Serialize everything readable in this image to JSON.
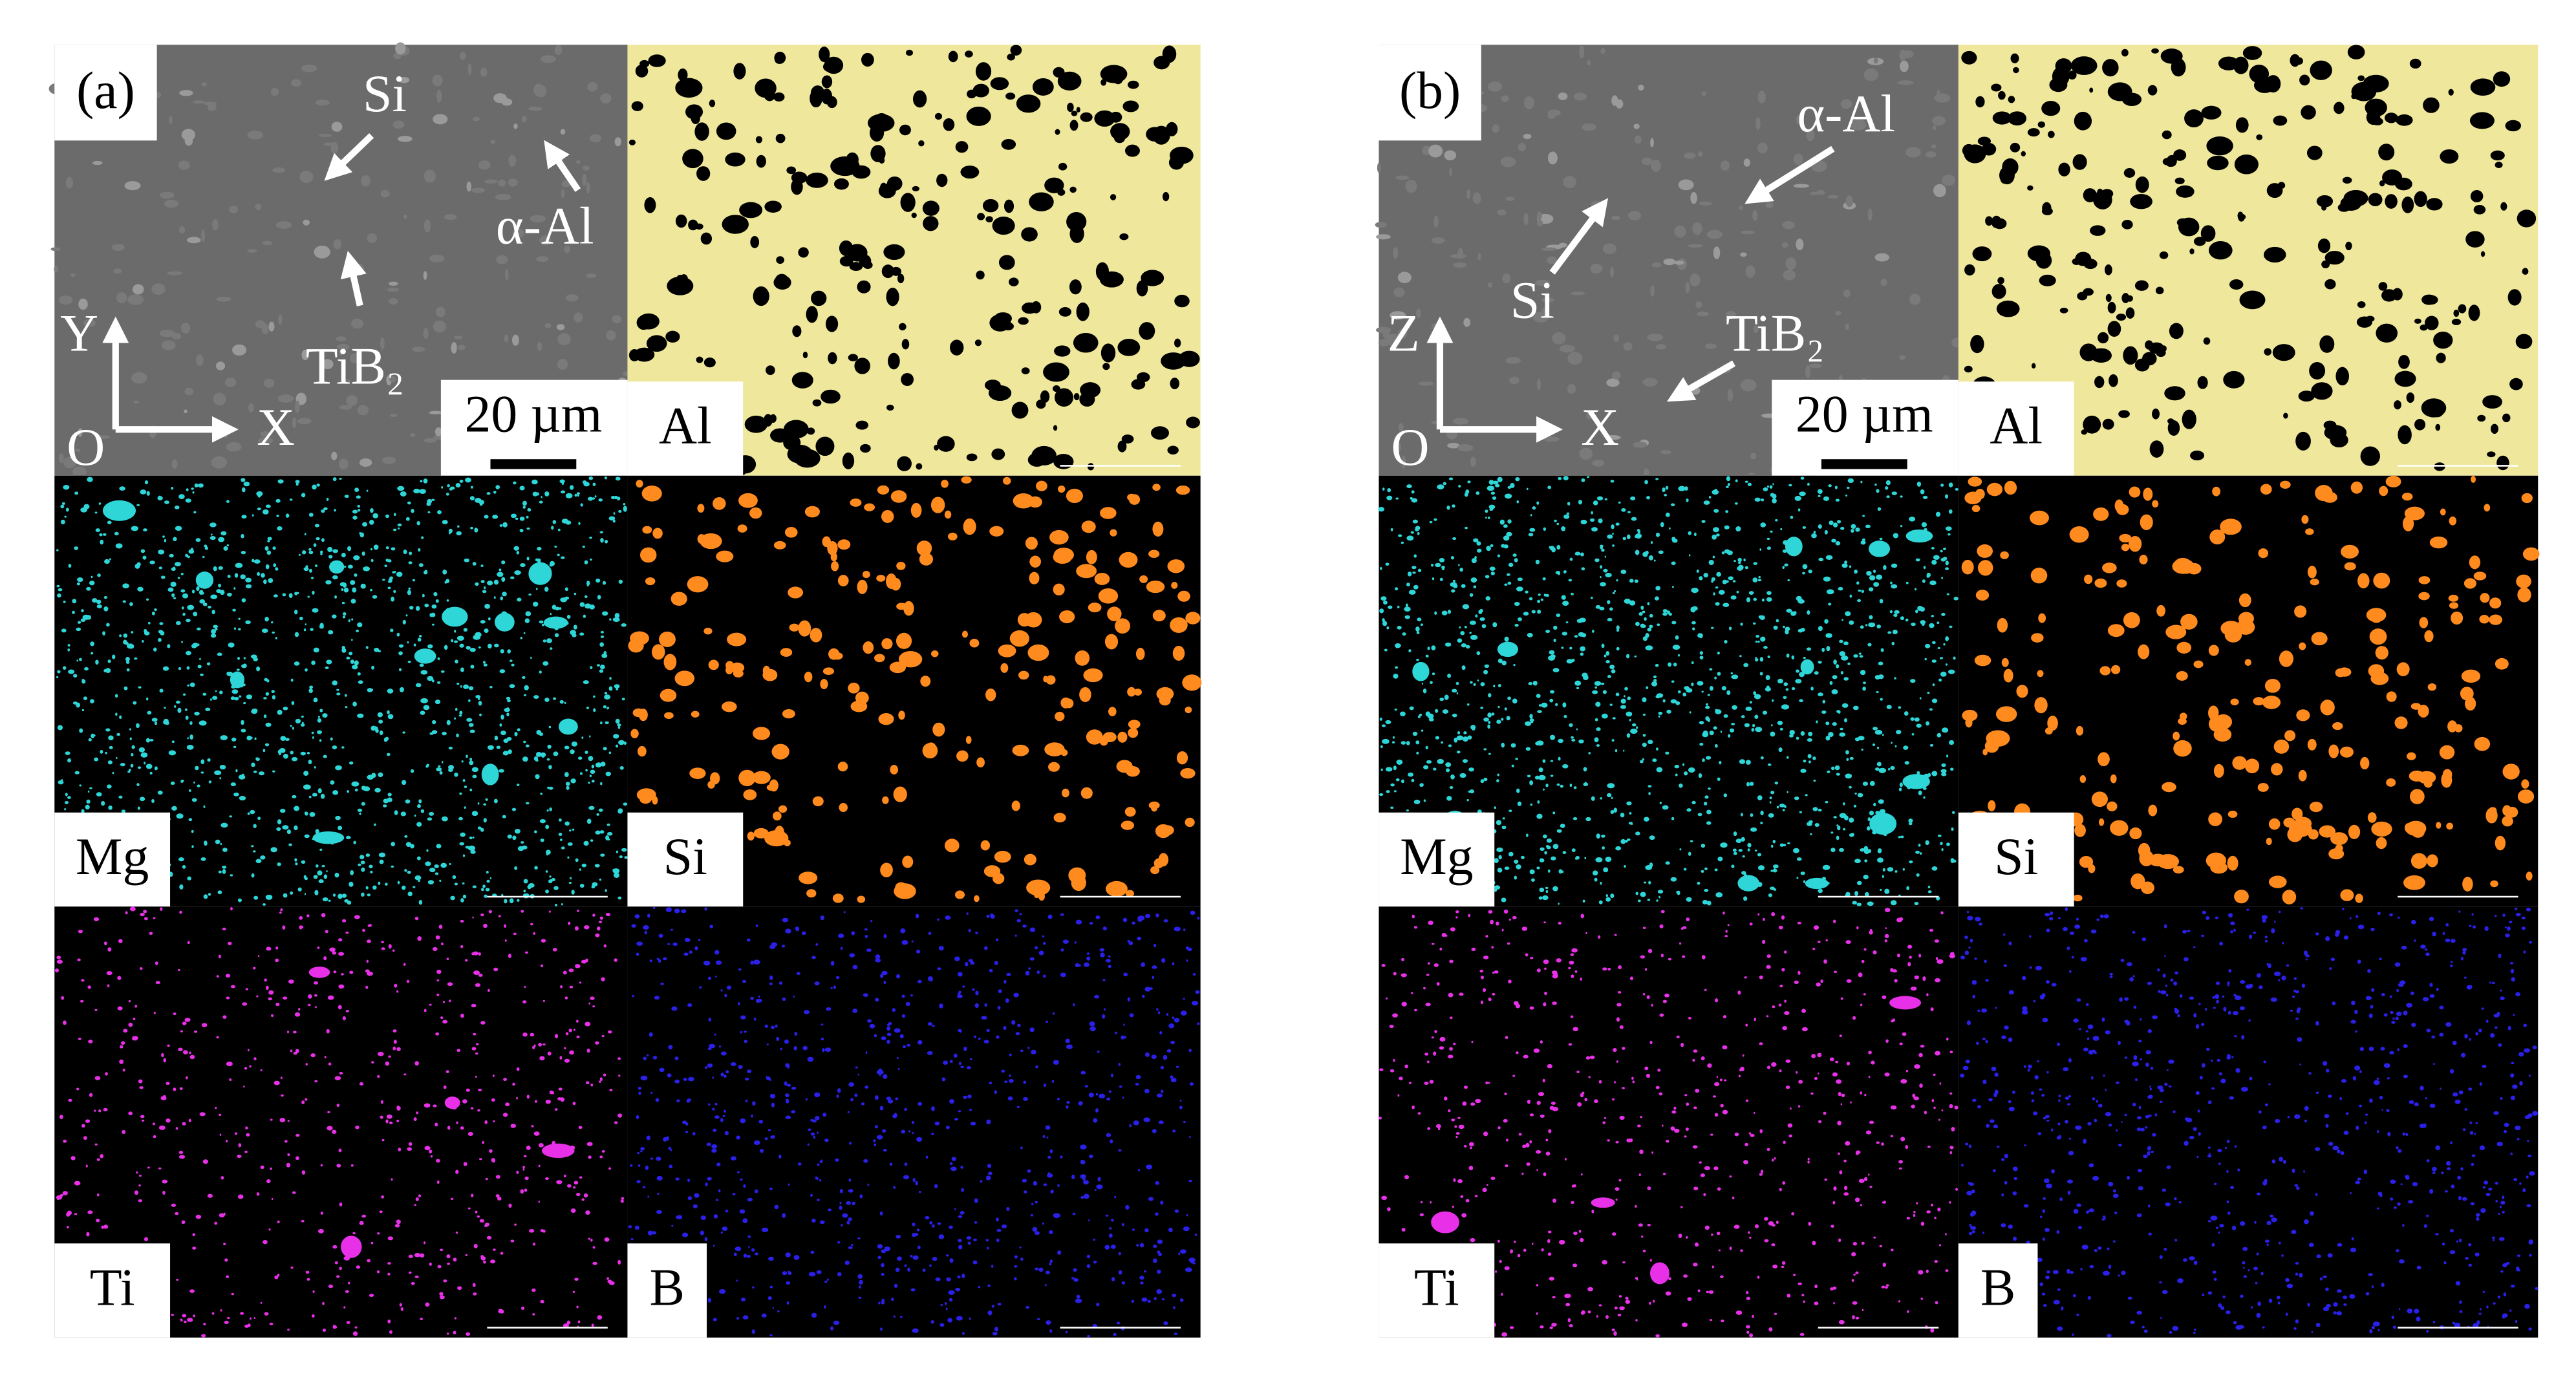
{
  "panels": [
    {
      "label": "(a)",
      "sem": {
        "annotations": [
          "Si",
          "α-Al",
          "TiB₂"
        ],
        "axes": {
          "vertical": "Y",
          "origin": "O",
          "horizontal": "X"
        },
        "scale_bar": "20 µm"
      },
      "maps": [
        "Al",
        "Mg",
        "Si",
        "Ti",
        "B"
      ]
    },
    {
      "label": "(b)",
      "sem": {
        "annotations": [
          "α-Al",
          "Si",
          "TiB₂"
        ],
        "axes": {
          "vertical": "Z",
          "origin": "O",
          "horizontal": "X"
        },
        "scale_bar": "20 µm"
      },
      "maps": [
        "Al",
        "Mg",
        "Si",
        "Ti",
        "B"
      ]
    }
  ]
}
